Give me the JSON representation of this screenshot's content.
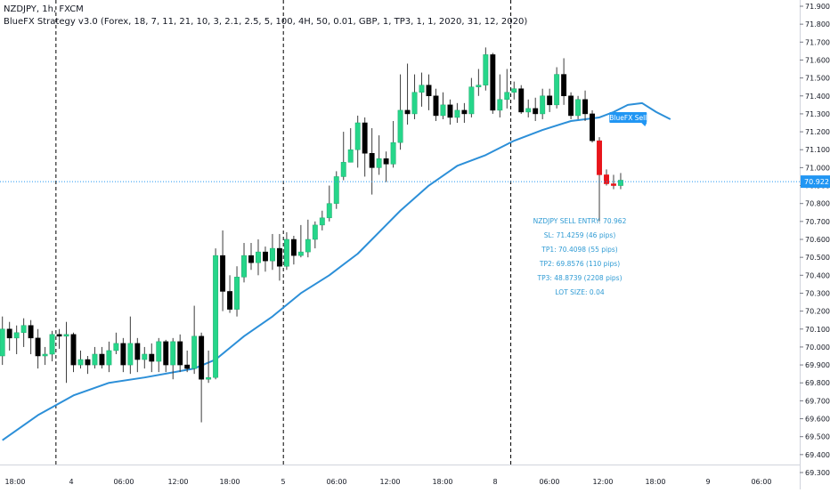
{
  "header": {
    "symbol_line": "NZDJPY, 1h, FXCM",
    "indicator_line": "BlueFX Strategy v3.0 (Forex, 18, 7, 11, 21, 10, 3, 2.1, 2.5, 5, 100, 4H, 50, 0.01, GBP, 1, TP3, 1, 1, 2020, 31, 12, 2020)"
  },
  "colors": {
    "up": "#26d68a",
    "down_normal": "#000000",
    "down_signal": "#e8151b",
    "ma_line": "#2c8fd8",
    "price_line": "#2196f3",
    "info_text": "#2f9bd4",
    "grid_text": "#131722",
    "separator": "#000000"
  },
  "chart_data": {
    "type": "candlestick",
    "symbol": "NZDJPY",
    "timeframe": "1h",
    "ylim": [
      69.3,
      71.9
    ],
    "y_ticks": [
      "71.900",
      "71.800",
      "71.700",
      "71.600",
      "71.500",
      "71.400",
      "71.300",
      "71.200",
      "71.100",
      "71.000",
      "70.900",
      "70.800",
      "70.700",
      "70.600",
      "70.500",
      "70.400",
      "70.300",
      "70.200",
      "70.100",
      "70.000",
      "69.900",
      "69.800",
      "69.700",
      "69.600",
      "69.500",
      "69.400",
      "69.300"
    ],
    "x_ticks": [
      "18:00",
      "4",
      "06:00",
      "12:00",
      "18:00",
      "5",
      "06:00",
      "12:00",
      "18:00",
      "8",
      "06:00",
      "12:00",
      "18:00",
      "9",
      "06:00"
    ],
    "current_price": "70.922",
    "candles": [
      [
        69.95,
        70.1,
        70.17,
        69.9
      ],
      [
        70.1,
        70.05,
        70.14,
        69.98
      ],
      [
        70.05,
        70.08,
        70.12,
        69.96
      ],
      [
        70.08,
        70.12,
        70.16,
        70.0
      ],
      [
        70.12,
        70.05,
        70.15,
        69.96
      ],
      [
        70.05,
        69.95,
        70.1,
        69.88
      ],
      [
        69.95,
        69.96,
        70.0,
        69.9
      ],
      [
        69.96,
        70.07,
        70.09,
        69.92
      ],
      [
        70.07,
        70.06,
        70.1,
        69.99
      ],
      [
        70.06,
        70.07,
        70.14,
        69.8
      ],
      [
        70.07,
        69.9,
        70.08,
        69.86
      ],
      [
        69.9,
        69.93,
        69.98,
        69.88
      ],
      [
        69.93,
        69.9,
        69.95,
        69.85
      ],
      [
        69.9,
        69.96,
        70.0,
        69.88
      ],
      [
        69.96,
        69.9,
        70.0,
        69.88
      ],
      [
        69.9,
        69.98,
        70.03,
        69.86
      ],
      [
        69.98,
        70.02,
        70.08,
        69.96
      ],
      [
        70.02,
        69.9,
        70.05,
        69.86
      ],
      [
        69.9,
        70.02,
        70.17,
        69.85
      ],
      [
        70.02,
        69.93,
        70.05,
        69.86
      ],
      [
        69.93,
        69.96,
        70.0,
        69.88
      ],
      [
        69.96,
        69.92,
        70.02,
        69.86
      ],
      [
        69.92,
        70.03,
        70.05,
        69.86
      ],
      [
        70.03,
        69.9,
        70.04,
        69.86
      ],
      [
        69.9,
        70.03,
        70.05,
        69.82
      ],
      [
        70.03,
        69.9,
        70.07,
        69.86
      ],
      [
        69.9,
        69.88,
        69.98,
        69.86
      ],
      [
        69.88,
        70.06,
        70.23,
        69.85
      ],
      [
        70.06,
        69.82,
        70.08,
        69.58
      ],
      [
        69.82,
        69.83,
        69.98,
        69.8
      ],
      [
        69.83,
        70.51,
        70.55,
        69.82
      ],
      [
        70.51,
        70.31,
        70.65,
        70.2
      ],
      [
        70.31,
        70.21,
        70.4,
        70.19
      ],
      [
        70.21,
        70.39,
        70.45,
        70.17
      ],
      [
        70.39,
        70.51,
        70.58,
        70.36
      ],
      [
        70.51,
        70.47,
        70.58,
        70.43
      ],
      [
        70.47,
        70.53,
        70.6,
        70.4
      ],
      [
        70.53,
        70.48,
        70.56,
        70.42
      ],
      [
        70.48,
        70.55,
        70.63,
        70.43
      ],
      [
        70.55,
        70.45,
        70.63,
        70.37
      ],
      [
        70.45,
        70.6,
        70.64,
        70.43
      ],
      [
        70.6,
        70.51,
        70.62,
        70.46
      ],
      [
        70.51,
        70.53,
        70.68,
        70.5
      ],
      [
        70.53,
        70.6,
        70.71,
        70.5
      ],
      [
        70.6,
        70.68,
        70.7,
        70.55
      ],
      [
        70.68,
        70.72,
        70.76,
        70.65
      ],
      [
        70.72,
        70.8,
        70.9,
        70.7
      ],
      [
        70.8,
        70.95,
        70.98,
        70.77
      ],
      [
        70.95,
        71.03,
        71.2,
        70.93
      ],
      [
        71.03,
        71.1,
        71.22,
        71.03
      ],
      [
        71.1,
        71.25,
        71.29,
        71.0
      ],
      [
        71.25,
        71.08,
        71.28,
        70.95
      ],
      [
        71.08,
        71.0,
        71.22,
        70.85
      ],
      [
        71.0,
        71.05,
        71.18,
        70.96
      ],
      [
        71.05,
        71.02,
        71.09,
        70.92
      ],
      [
        71.02,
        71.14,
        71.26,
        71.0
      ],
      [
        71.14,
        71.32,
        71.52,
        71.1
      ],
      [
        71.32,
        71.3,
        71.58,
        71.24
      ],
      [
        71.3,
        71.42,
        71.52,
        71.27
      ],
      [
        71.42,
        71.46,
        71.53,
        71.34
      ],
      [
        71.46,
        71.4,
        71.52,
        71.32
      ],
      [
        71.4,
        71.29,
        71.44,
        71.26
      ],
      [
        71.29,
        71.35,
        71.42,
        71.27
      ],
      [
        71.35,
        71.28,
        71.38,
        71.24
      ],
      [
        71.28,
        71.32,
        71.36,
        71.25
      ],
      [
        71.32,
        71.3,
        71.36,
        71.25
      ],
      [
        71.3,
        71.45,
        71.5,
        71.28
      ],
      [
        71.45,
        71.46,
        71.55,
        71.4
      ],
      [
        71.46,
        71.63,
        71.67,
        71.43
      ],
      [
        71.63,
        71.32,
        71.64,
        71.3
      ],
      [
        71.32,
        71.38,
        71.52,
        71.28
      ],
      [
        71.38,
        71.42,
        71.55,
        71.33
      ],
      [
        71.42,
        71.44,
        71.48,
        71.38
      ],
      [
        71.44,
        71.31,
        71.46,
        71.3
      ],
      [
        71.31,
        71.33,
        71.38,
        71.28
      ],
      [
        71.33,
        71.3,
        71.39,
        71.26
      ],
      [
        71.3,
        71.4,
        71.44,
        71.27
      ],
      [
        71.4,
        71.35,
        71.44,
        71.31
      ],
      [
        71.35,
        71.52,
        71.56,
        71.33
      ],
      [
        71.52,
        71.4,
        71.61,
        71.35
      ],
      [
        71.4,
        71.29,
        71.42,
        71.27
      ],
      [
        71.29,
        71.38,
        71.4,
        71.27
      ],
      [
        71.38,
        71.3,
        71.43,
        71.26
      ],
      [
        71.3,
        71.15,
        71.32,
        71.14
      ],
      [
        71.15,
        70.96,
        71.17,
        70.7
      ],
      [
        70.96,
        70.91,
        70.99,
        70.9
      ],
      [
        70.91,
        70.9,
        70.96,
        70.88
      ],
      [
        70.9,
        70.93,
        70.97,
        70.88
      ]
    ],
    "signal_candle_indices": [
      84,
      85,
      86
    ],
    "ma_line": [
      [
        0,
        69.48
      ],
      [
        5,
        69.62
      ],
      [
        10,
        69.73
      ],
      [
        15,
        69.8
      ],
      [
        20,
        69.83
      ],
      [
        27,
        69.88
      ],
      [
        30,
        69.93
      ],
      [
        34,
        70.06
      ],
      [
        38,
        70.17
      ],
      [
        42,
        70.3
      ],
      [
        46,
        70.4
      ],
      [
        50,
        70.52
      ],
      [
        56,
        70.76
      ],
      [
        60,
        70.9
      ],
      [
        64,
        71.01
      ],
      [
        68,
        71.07
      ],
      [
        72,
        71.15
      ],
      [
        76,
        71.21
      ],
      [
        80,
        71.26
      ],
      [
        84,
        71.28
      ],
      [
        86,
        71.31
      ],
      [
        88,
        71.35
      ],
      [
        90,
        71.36
      ],
      [
        92,
        71.31
      ],
      [
        94,
        71.27
      ]
    ],
    "vertical_separators_after": [
      8,
      40,
      72
    ],
    "signal_label": "BlueFX Sell",
    "trade_info": [
      "NZDJPY SELL ENTRY: 70.962",
      "SL: 71.4259 (46 pips)",
      "TP1: 70.4098 (55 pips)",
      "TP2: 69.8576 (110 pips)",
      "TP3: 48.8739 (2208 pips)",
      "LOT SIZE: 0.04"
    ]
  }
}
